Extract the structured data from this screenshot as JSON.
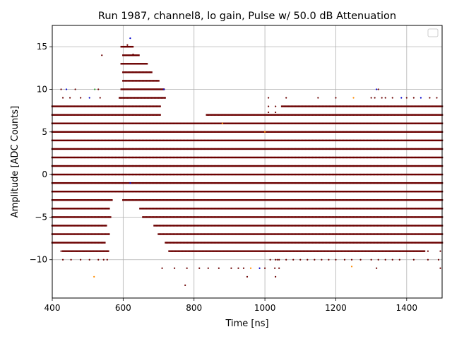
{
  "chart_data": {
    "type": "scatter",
    "title": "Run 1987, channel8, lo gain, Pulse w/ 50.0 dB Attenuation",
    "xlabel": "Time [ns]",
    "ylabel": "Amplitude [ADC Counts]",
    "xlim": [
      400,
      1500
    ],
    "ylim": [
      -14.5,
      17.5
    ],
    "xticks": [
      400,
      600,
      800,
      1000,
      1200,
      1400
    ],
    "yticks": [
      -10,
      -5,
      0,
      5,
      10,
      15
    ],
    "xtick_labels": [
      "400",
      "600",
      "800",
      "1000",
      "1200",
      "1400"
    ],
    "ytick_labels": [
      "−10",
      "−5",
      "0",
      "5",
      "10",
      "15"
    ],
    "grid": true,
    "legend": {
      "position": "top-right",
      "entries": []
    },
    "colors": {
      "dense": "#6b0000",
      "sparse_a": "#0000cc",
      "sparse_b": "#ff8c00",
      "sparse_c": "#2ca02c"
    },
    "x_sample_step_ns": 4,
    "baseline_bands": [
      {
        "y": 6,
        "x_range": [
          400,
          1500
        ]
      },
      {
        "y": 5,
        "x_range": [
          400,
          1500
        ]
      },
      {
        "y": 4,
        "x_range": [
          400,
          1500
        ]
      },
      {
        "y": 3,
        "x_range": [
          400,
          1500
        ]
      },
      {
        "y": 2,
        "x_range": [
          400,
          1500
        ]
      },
      {
        "y": 1,
        "x_range": [
          400,
          1500
        ]
      },
      {
        "y": 0,
        "x_range": [
          400,
          1500
        ]
      },
      {
        "y": -1,
        "x_range": [
          400,
          1500
        ]
      },
      {
        "y": -2,
        "x_range": [
          400,
          1500
        ]
      },
      {
        "y": 7,
        "x_range": [
          400,
          1500
        ],
        "gap": [
          705,
          835
        ]
      },
      {
        "y": 8,
        "x_range": [
          400,
          1500
        ],
        "gap": [
          705,
          1045
        ]
      },
      {
        "y": -3,
        "x_range": [
          400,
          1500
        ],
        "gap": [
          570,
          600
        ]
      },
      {
        "y": -4,
        "x_range": [
          400,
          1500
        ],
        "gap": [
          560,
          645
        ]
      },
      {
        "y": -5,
        "x_range": [
          400,
          1500
        ],
        "gap": [
          565,
          655
        ]
      },
      {
        "y": -6,
        "x_range": [
          400,
          1500
        ],
        "gap": [
          555,
          685
        ]
      },
      {
        "y": -7,
        "x_range": [
          400,
          1500
        ],
        "gap": [
          560,
          700
        ]
      },
      {
        "y": -8,
        "x_range": [
          400,
          1500
        ],
        "gap": [
          550,
          720
        ]
      },
      {
        "y": -9,
        "x_range": [
          430,
          1450
        ],
        "gap": [
          560,
          730
        ]
      }
    ],
    "pulse_bands": [
      {
        "y": 9,
        "x_range": [
          590,
          720
        ]
      },
      {
        "y": 10,
        "x_range": [
          595,
          715
        ]
      },
      {
        "y": 11,
        "x_range": [
          600,
          700
        ]
      },
      {
        "y": 12,
        "x_range": [
          600,
          680
        ]
      },
      {
        "y": 13,
        "x_range": [
          595,
          670
        ]
      },
      {
        "y": 14,
        "x_range": [
          600,
          645
        ]
      },
      {
        "y": 15,
        "x_range": [
          595,
          630
        ]
      }
    ],
    "sparse_points": [
      {
        "x": 620,
        "y": 16,
        "c": "sparse_a"
      },
      {
        "x": 612,
        "y": 15.2,
        "c": "dense"
      },
      {
        "x": 540,
        "y": 14,
        "c": "dense"
      },
      {
        "x": 628,
        "y": 14.1,
        "c": "dense"
      },
      {
        "x": 425,
        "y": 10,
        "c": "dense"
      },
      {
        "x": 440,
        "y": 10,
        "c": "sparse_a"
      },
      {
        "x": 465,
        "y": 10,
        "c": "dense"
      },
      {
        "x": 520,
        "y": 10,
        "c": "sparse_c"
      },
      {
        "x": 530,
        "y": 10,
        "c": "dense"
      },
      {
        "x": 715,
        "y": 10,
        "c": "sparse_a"
      },
      {
        "x": 1315,
        "y": 10,
        "c": "sparse_a"
      },
      {
        "x": 1320,
        "y": 10,
        "c": "dense"
      },
      {
        "x": 430,
        "y": 9,
        "c": "dense"
      },
      {
        "x": 450,
        "y": 9,
        "c": "dense"
      },
      {
        "x": 480,
        "y": 9,
        "c": "dense"
      },
      {
        "x": 505,
        "y": 9,
        "c": "sparse_a"
      },
      {
        "x": 535,
        "y": 9,
        "c": "dense"
      },
      {
        "x": 1010,
        "y": 9,
        "c": "dense"
      },
      {
        "x": 1060,
        "y": 9,
        "c": "dense"
      },
      {
        "x": 1150,
        "y": 9,
        "c": "dense"
      },
      {
        "x": 1200,
        "y": 9,
        "c": "dense"
      },
      {
        "x": 1250,
        "y": 9,
        "c": "sparse_b"
      },
      {
        "x": 1300,
        "y": 9,
        "c": "dense"
      },
      {
        "x": 1310,
        "y": 9,
        "c": "dense"
      },
      {
        "x": 1330,
        "y": 9,
        "c": "dense"
      },
      {
        "x": 1340,
        "y": 9,
        "c": "dense"
      },
      {
        "x": 1360,
        "y": 9,
        "c": "dense"
      },
      {
        "x": 1385,
        "y": 9,
        "c": "sparse_a"
      },
      {
        "x": 1400,
        "y": 9,
        "c": "dense"
      },
      {
        "x": 1420,
        "y": 9,
        "c": "dense"
      },
      {
        "x": 1440,
        "y": 9,
        "c": "sparse_a"
      },
      {
        "x": 1465,
        "y": 9,
        "c": "dense"
      },
      {
        "x": 1485,
        "y": 9,
        "c": "dense"
      },
      {
        "x": 840,
        "y": 7,
        "c": "dense"
      },
      {
        "x": 870,
        "y": 7,
        "c": "dense"
      },
      {
        "x": 1010,
        "y": 7.3,
        "c": "dense"
      },
      {
        "x": 1030,
        "y": 7.3,
        "c": "dense"
      },
      {
        "x": 1010,
        "y": 8,
        "c": "dense"
      },
      {
        "x": 1030,
        "y": 8,
        "c": "dense"
      },
      {
        "x": 880,
        "y": 6,
        "c": "sparse_b"
      },
      {
        "x": 1000,
        "y": 5,
        "c": "sparse_b"
      },
      {
        "x": 505,
        "y": -10,
        "c": "dense"
      },
      {
        "x": 1015,
        "y": -10,
        "c": "dense"
      },
      {
        "x": 1030,
        "y": -10,
        "c": "dense"
      },
      {
        "x": 1035,
        "y": -10,
        "c": "dense"
      },
      {
        "x": 1040,
        "y": -10,
        "c": "dense"
      },
      {
        "x": 1060,
        "y": -10,
        "c": "dense"
      },
      {
        "x": 1080,
        "y": -10,
        "c": "dense"
      },
      {
        "x": 1100,
        "y": -10,
        "c": "dense"
      },
      {
        "x": 1120,
        "y": -10,
        "c": "dense"
      },
      {
        "x": 1140,
        "y": -10,
        "c": "dense"
      },
      {
        "x": 1160,
        "y": -10,
        "c": "dense"
      },
      {
        "x": 1180,
        "y": -10,
        "c": "dense"
      },
      {
        "x": 1200,
        "y": -10,
        "c": "dense"
      },
      {
        "x": 1225,
        "y": -10,
        "c": "dense"
      },
      {
        "x": 1245,
        "y": -10,
        "c": "dense"
      },
      {
        "x": 1270,
        "y": -10,
        "c": "dense"
      },
      {
        "x": 1300,
        "y": -10,
        "c": "dense"
      },
      {
        "x": 1320,
        "y": -10,
        "c": "dense"
      },
      {
        "x": 1340,
        "y": -10,
        "c": "dense"
      },
      {
        "x": 1360,
        "y": -10,
        "c": "dense"
      },
      {
        "x": 1380,
        "y": -10,
        "c": "dense"
      },
      {
        "x": 1420,
        "y": -10,
        "c": "dense"
      },
      {
        "x": 1460,
        "y": -10,
        "c": "dense"
      },
      {
        "x": 1490,
        "y": -10,
        "c": "dense"
      },
      {
        "x": 1040,
        "y": -11,
        "c": "dense"
      },
      {
        "x": 1315,
        "y": -11,
        "c": "dense"
      },
      {
        "x": 1495,
        "y": -11,
        "c": "dense"
      },
      {
        "x": 1245,
        "y": -10.8,
        "c": "sparse_b"
      },
      {
        "x": 710,
        "y": -11,
        "c": "dense"
      },
      {
        "x": 745,
        "y": -11,
        "c": "dense"
      },
      {
        "x": 780,
        "y": -11,
        "c": "dense"
      },
      {
        "x": 815,
        "y": -11,
        "c": "dense"
      },
      {
        "x": 840,
        "y": -11,
        "c": "dense"
      },
      {
        "x": 870,
        "y": -11,
        "c": "dense"
      },
      {
        "x": 905,
        "y": -11,
        "c": "dense"
      },
      {
        "x": 925,
        "y": -11,
        "c": "dense"
      },
      {
        "x": 940,
        "y": -11,
        "c": "dense"
      },
      {
        "x": 960,
        "y": -11,
        "c": "sparse_b"
      },
      {
        "x": 985,
        "y": -11,
        "c": "sparse_a"
      },
      {
        "x": 1000,
        "y": -11,
        "c": "dense"
      },
      {
        "x": 1028,
        "y": -11,
        "c": "dense"
      },
      {
        "x": 950,
        "y": -12,
        "c": "dense"
      },
      {
        "x": 1030,
        "y": -12,
        "c": "dense"
      },
      {
        "x": 518,
        "y": -12,
        "c": "sparse_b"
      },
      {
        "x": 775,
        "y": -13,
        "c": "dense"
      },
      {
        "x": 430,
        "y": -10,
        "c": "dense"
      },
      {
        "x": 453,
        "y": -10,
        "c": "dense"
      },
      {
        "x": 480,
        "y": -10,
        "c": "dense"
      },
      {
        "x": 530,
        "y": -10,
        "c": "dense"
      },
      {
        "x": 545,
        "y": -10,
        "c": "dense"
      },
      {
        "x": 555,
        "y": -10,
        "c": "dense"
      },
      {
        "x": 425,
        "y": -9,
        "c": "dense"
      },
      {
        "x": 455,
        "y": -9,
        "c": "dense"
      },
      {
        "x": 470,
        "y": -9,
        "c": "dense"
      },
      {
        "x": 490,
        "y": -9,
        "c": "dense"
      },
      {
        "x": 510,
        "y": -9,
        "c": "dense"
      },
      {
        "x": 540,
        "y": -9,
        "c": "dense"
      },
      {
        "x": 1320,
        "y": -9,
        "c": "dense"
      },
      {
        "x": 1340,
        "y": -9,
        "c": "dense"
      },
      {
        "x": 1380,
        "y": -9,
        "c": "dense"
      },
      {
        "x": 1420,
        "y": -9,
        "c": "dense"
      },
      {
        "x": 1440,
        "y": -9,
        "c": "dense"
      },
      {
        "x": 1460,
        "y": -9,
        "c": "dense"
      },
      {
        "x": 1495,
        "y": -9,
        "c": "dense"
      },
      {
        "x": 620,
        "y": -1,
        "c": "sparse_a"
      }
    ]
  }
}
